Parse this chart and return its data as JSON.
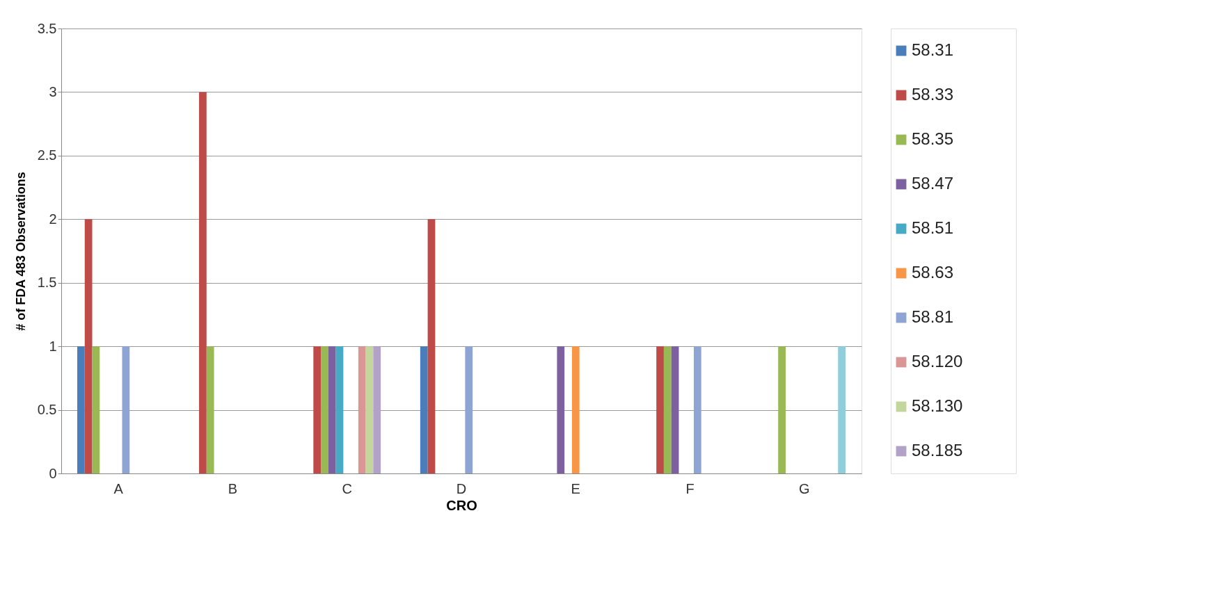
{
  "chart_data": {
    "type": "bar",
    "xlabel": "CRO",
    "ylabel": "# of FDA 483 Observations",
    "categories": [
      "A",
      "B",
      "C",
      "D",
      "E",
      "F",
      "G"
    ],
    "ylim": [
      0,
      3.5
    ],
    "yticks": [
      0,
      0.5,
      1,
      1.5,
      2,
      2.5,
      3,
      3.5
    ],
    "grid": "y",
    "legend": "right",
    "series": [
      {
        "name": "58.31",
        "color": "#4a7ebb",
        "values": [
          1,
          0,
          0,
          1,
          0,
          0,
          0
        ]
      },
      {
        "name": "58.33",
        "color": "#be4b48",
        "values": [
          2,
          3,
          1,
          2,
          0,
          1,
          0
        ]
      },
      {
        "name": "58.35",
        "color": "#98b954",
        "values": [
          1,
          1,
          1,
          0,
          0,
          1,
          1
        ]
      },
      {
        "name": "58.47",
        "color": "#7d60a0",
        "values": [
          0,
          0,
          1,
          0,
          1,
          1,
          0
        ]
      },
      {
        "name": "58.51",
        "color": "#46aac5",
        "values": [
          0,
          0,
          1,
          0,
          0,
          0,
          0
        ]
      },
      {
        "name": "58.63",
        "color": "#f79646",
        "values": [
          0,
          0,
          0,
          0,
          1,
          0,
          0
        ]
      },
      {
        "name": "58.81",
        "color": "#8ea5d4",
        "values": [
          1,
          0,
          0,
          1,
          0,
          1,
          0
        ]
      },
      {
        "name": "58.120",
        "color": "#d99694",
        "values": [
          0,
          0,
          1,
          0,
          0,
          0,
          0
        ]
      },
      {
        "name": "58.130",
        "color": "#c3d69b",
        "values": [
          0,
          0,
          1,
          0,
          0,
          0,
          0
        ]
      },
      {
        "name": "58.185",
        "color": "#b3a2c7",
        "values": [
          0,
          0,
          1,
          0,
          0,
          0,
          0
        ]
      },
      {
        "color": "#92cddc",
        "values": [
          0,
          0,
          0,
          0,
          0,
          0,
          1
        ]
      }
    ]
  }
}
